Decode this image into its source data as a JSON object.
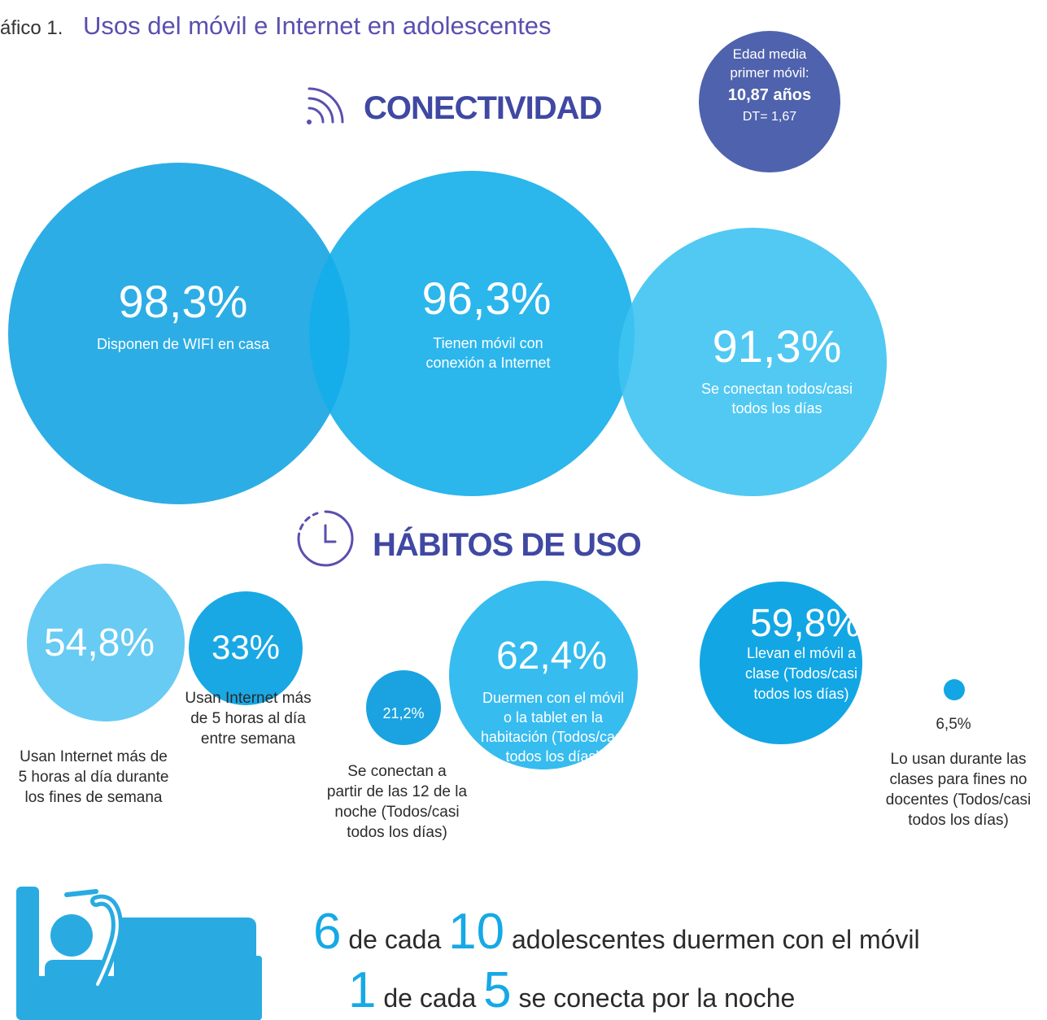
{
  "header": {
    "label": "áfico 1.",
    "title": "Usos del móvil e Internet en adolescentes"
  },
  "badge": {
    "lines": [
      "Edad media",
      "primer móvil:"
    ],
    "value": "10,87 años",
    "sd": "DT= 1,67"
  },
  "connectivity": {
    "title": "CONECTIVIDAD",
    "items": [
      {
        "value": "98,3%",
        "label": [
          "Disponen de WIFI en casa"
        ]
      },
      {
        "value": "96,3%",
        "label": [
          "Tienen móvil con",
          "conexión a Internet"
        ]
      },
      {
        "value": "91,3%",
        "label": [
          "Se conectan todos/casi",
          "todos los días"
        ]
      }
    ]
  },
  "habits": {
    "title": "HÁBITOS DE USO",
    "items": [
      {
        "value": "54,8%",
        "label": [
          "Usan Internet más de",
          "5 horas al día durante",
          "los fines de semana"
        ]
      },
      {
        "value": "33%",
        "label": [
          "Usan Internet más",
          "de 5 horas al día",
          "entre semana"
        ]
      },
      {
        "value": "21,2%",
        "label": [
          "Se conectan a",
          "partir de las 12 de la",
          "noche (Todos/casi",
          "todos los días)"
        ]
      },
      {
        "value": "62,4%",
        "label": [
          "Duermen con el móvil",
          "o la tablet en la",
          "habitación (Todos/casi",
          "todos los días)"
        ]
      },
      {
        "value": "59,8%",
        "label": [
          "Llevan el móvil a",
          "clase (Todos/casi",
          "todos los días)"
        ]
      },
      {
        "value": "6,5%",
        "label": [
          "Lo usan durante las",
          "clases para fines no",
          "docentes (Todos/casi",
          "todos los días)"
        ]
      }
    ]
  },
  "footer": {
    "lines": [
      [
        "6",
        "de cada",
        "10",
        "adolescentes duermen con el móvil"
      ],
      [
        "1",
        "de cada",
        "5",
        "se conecta por la noche"
      ]
    ]
  }
}
